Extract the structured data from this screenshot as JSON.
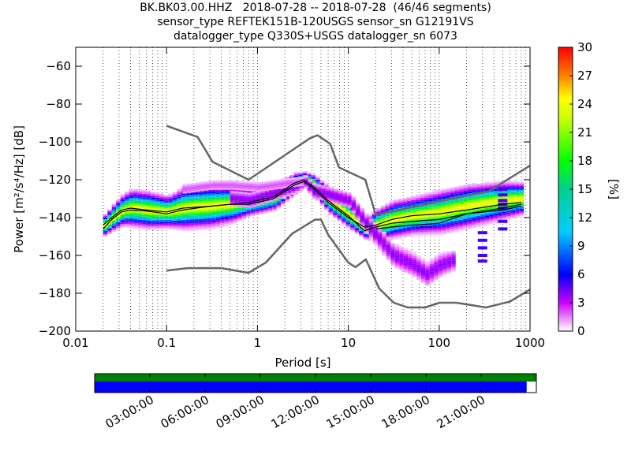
{
  "chart_data": {
    "type": "heatmap",
    "title_lines": [
      "BK.BK03.00.HHZ   2018-07-28 -- 2018-07-28  (46/46 segments)",
      "sensor_type REFTEK151B-120USGS sensor_sn G12191VS",
      "datalogger_type Q330S+USGS datalogger_sn 6073"
    ],
    "xlabel": "Period [s]",
    "ylabel": "Power [m²/s⁴/Hz] [dB]",
    "xscale": "log",
    "xlim": [
      0.01,
      1000
    ],
    "ylim": [
      -200,
      -50
    ],
    "x_ticks": [
      0.01,
      0.1,
      1,
      10,
      100,
      1000
    ],
    "x_tick_labels": [
      "0.01",
      "0.1",
      "1",
      "10",
      "100",
      "1000"
    ],
    "y_ticks": [
      -200,
      -180,
      -160,
      -140,
      -120,
      -100,
      -80,
      -60
    ],
    "y_tick_labels": [
      "−200",
      "−180",
      "−160",
      "−140",
      "−120",
      "−100",
      "−80",
      "−60"
    ],
    "grid": "vertical dotted at log minor and major ticks",
    "colorbar": {
      "label": "[%]",
      "min": 0,
      "max": 30,
      "ticks": [
        "0",
        "3",
        "6",
        "9",
        "12",
        "15",
        "18",
        "21",
        "24",
        "27",
        "30"
      ],
      "colormap": "pqlx white-magenta-blue-cyan-green-yellow-red"
    },
    "noise_model_high": {
      "name": "NHNM",
      "x": [
        0.1,
        0.22,
        0.32,
        0.8,
        3.8,
        4.6,
        6.3,
        7.9,
        15.4,
        20,
        354,
        1000
      ],
      "y": [
        -91.5,
        -97.4,
        -110.5,
        -120,
        -98,
        -96.5,
        -101,
        -113.5,
        -120,
        -138.5,
        -126,
        -112.5
      ]
    },
    "noise_model_low": {
      "name": "NLNM",
      "x": [
        0.1,
        0.17,
        0.4,
        0.8,
        1.24,
        2.4,
        4.3,
        5,
        6,
        10,
        12,
        15.6,
        21.9,
        31.6,
        45,
        70,
        101,
        154,
        328,
        600,
        1000
      ],
      "y": [
        -168,
        -166.7,
        -166.7,
        -169.2,
        -163.7,
        -148.6,
        -141.1,
        -141.1,
        -149,
        -163.8,
        -166.2,
        -162.1,
        -177.5,
        -185,
        -187.5,
        -187.5,
        -185,
        -185,
        -187.5,
        -184.4,
        -178
      ]
    },
    "median_line": {
      "x": [
        0.02,
        0.025,
        0.032,
        0.04,
        0.06,
        0.1,
        0.15,
        0.3,
        0.5,
        0.8,
        1.5,
        2.5,
        3.2,
        4,
        6,
        10,
        15,
        20,
        30,
        50,
        100,
        200,
        500,
        800
      ],
      "y": [
        -146,
        -141,
        -137,
        -136,
        -136.5,
        -138,
        -136,
        -134,
        -133,
        -133,
        -130,
        -123,
        -121,
        -124,
        -132,
        -140,
        -145,
        -144,
        -141,
        -139,
        -138,
        -136,
        -133,
        -132
      ]
    },
    "mode_line": {
      "x": [
        0.02,
        0.025,
        0.032,
        0.04,
        0.06,
        0.1,
        0.15,
        0.3,
        0.5,
        0.8,
        1.5,
        2.5,
        3.2,
        4,
        6,
        10,
        15,
        20,
        30,
        50,
        100,
        200,
        500,
        800
      ],
      "y": [
        -144,
        -140,
        -136,
        -135,
        -136,
        -137,
        -135,
        -134,
        -133,
        -132,
        -129,
        -122,
        -120,
        -123,
        -131,
        -139,
        -147,
        -145,
        -143,
        -142,
        -141,
        -138,
        -135,
        -133
      ]
    },
    "mean_line": {
      "x": [
        20,
        30,
        50,
        100,
        200,
        500,
        800
      ],
      "y": [
        -146,
        -145,
        -144,
        -143,
        -138,
        -136,
        -134
      ]
    },
    "density_bands": [
      {
        "x": [
          0.02,
          0.025,
          0.032,
          0.04,
          0.06,
          0.1,
          0.15,
          0.3,
          0.5,
          0.8,
          1.5,
          2.5,
          3.2,
          4,
          6,
          10,
          15,
          20,
          30,
          50,
          100,
          200,
          500,
          800
        ],
        "center": [
          -144,
          -140,
          -136,
          -135,
          -136,
          -137,
          -135,
          -134,
          -133,
          -132,
          -129,
          -122,
          -120,
          -123,
          -131,
          -139,
          -146,
          -144,
          -141,
          -139,
          -137,
          -134,
          -131,
          -130
        ],
        "width": [
          4,
          5,
          6,
          7,
          7,
          6,
          8,
          8,
          7,
          5,
          5,
          4,
          3,
          4,
          5,
          5,
          4,
          6,
          7,
          7,
          8,
          8,
          7,
          6
        ],
        "peak": 24
      },
      {
        "x": [
          0.5,
          0.8,
          1.5,
          2.5,
          3.2,
          4,
          6,
          10,
          15,
          30,
          50,
          70,
          100,
          150
        ],
        "center": [
          -130,
          -131,
          -127,
          -124,
          -121,
          -126,
          -128,
          -131,
          -143,
          -160,
          -165,
          -170,
          -165,
          -162
        ],
        "width": [
          4,
          4,
          4,
          3,
          3,
          4,
          4,
          4,
          5,
          6,
          6,
          6,
          6,
          5
        ],
        "peak": 4
      },
      {
        "x": [
          0.15,
          0.3,
          0.5,
          1,
          2,
          3
        ],
        "center": [
          -125,
          -123,
          -123,
          -124,
          -122,
          -121
        ],
        "width": [
          3,
          3,
          3,
          3,
          3,
          3
        ],
        "peak": 2
      }
    ],
    "isolated_columns": [
      {
        "x": 500,
        "y": [
          -125,
          -128,
          -131,
          -133,
          -135,
          -142,
          -146
        ]
      },
      {
        "x": 300,
        "y": [
          -148,
          -152,
          -156,
          -160,
          -163
        ]
      }
    ]
  },
  "timeline": {
    "ticks": [
      "03:00:00",
      "06:00:00",
      "09:00:00",
      "12:00:00",
      "15:00:00",
      "18:00:00",
      "21:00:00"
    ],
    "tick_hours": [
      3,
      6,
      9,
      12,
      15,
      18,
      21
    ],
    "total_hours": 24,
    "top_bar_color": "#008000",
    "bottom_bar_color": "#0000ff",
    "top_bar_coverage": 1.0,
    "bottom_bar_coverage": 0.978
  }
}
